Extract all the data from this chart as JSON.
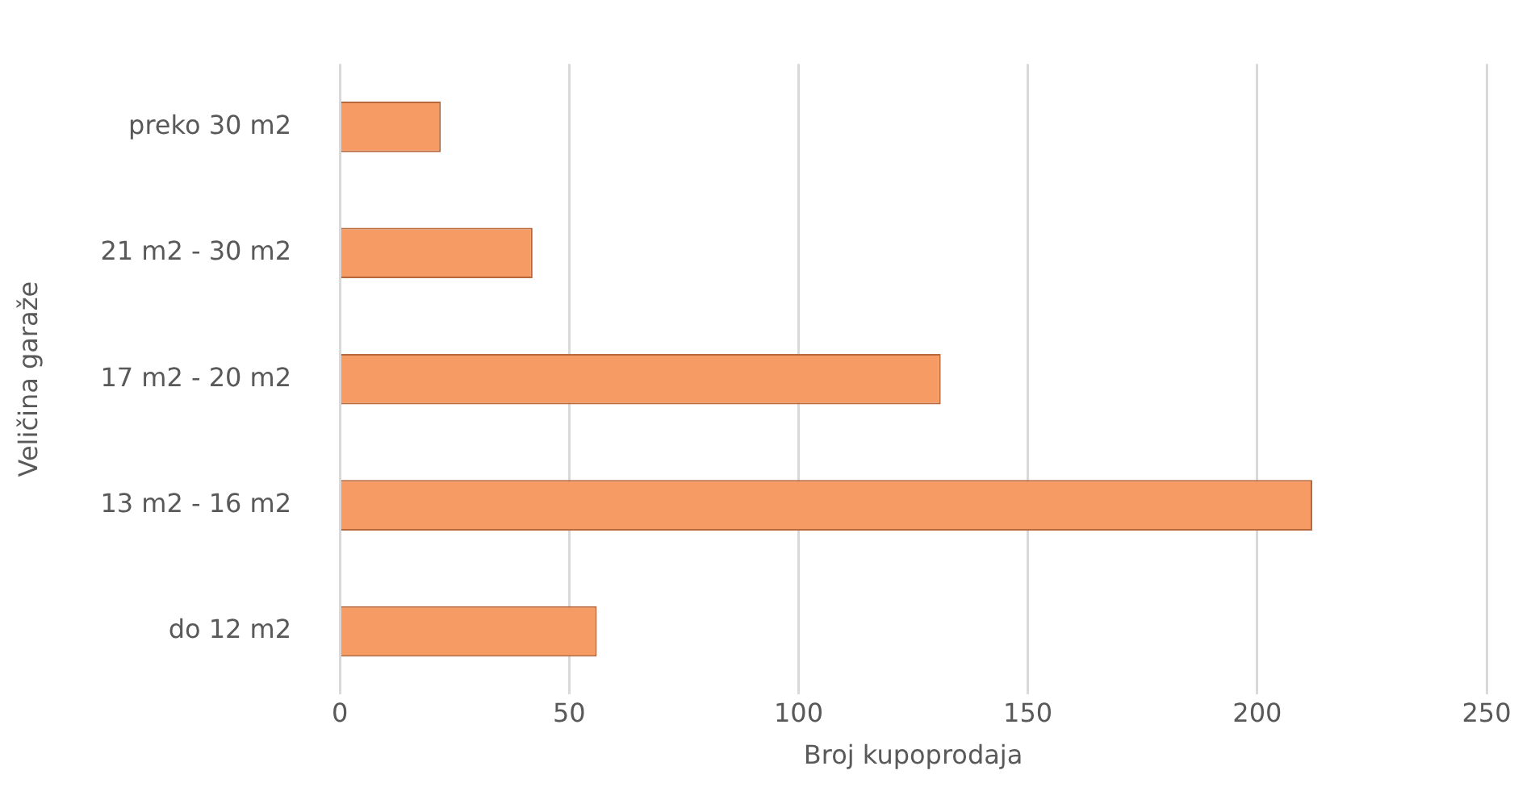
{
  "chart_data": {
    "type": "bar",
    "orientation": "horizontal",
    "xlabel": "Broj kupoprodaja",
    "ylabel": "Veličina garaže",
    "categories": [
      "preko 30 m2",
      "21 m2 - 30 m2",
      "17 m2 - 20 m2",
      "13 m2 - 16 m2",
      "do 12 m2"
    ],
    "values": [
      22,
      42,
      131,
      212,
      56
    ],
    "color": "#f79b64",
    "xlim": [
      0,
      250
    ],
    "xticks": [
      0,
      50,
      100,
      150,
      200,
      250
    ],
    "grid": "x",
    "legend": false
  }
}
